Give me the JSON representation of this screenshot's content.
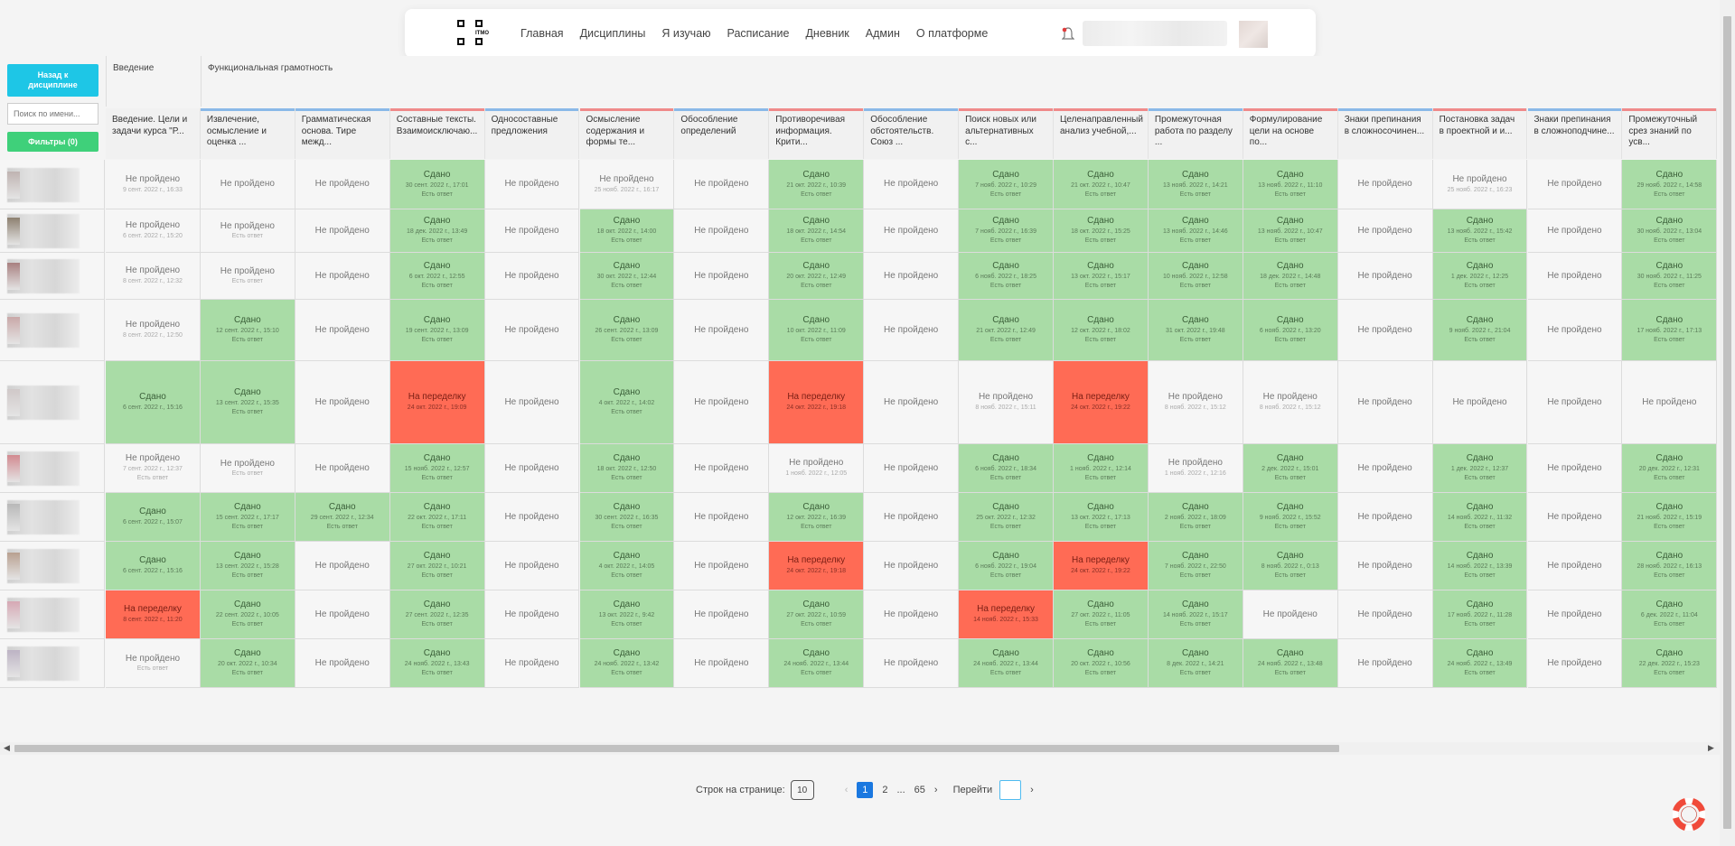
{
  "nav": {
    "logo_text": "ITMO",
    "links": [
      "Главная",
      "Дисциплины",
      "Я изучаю",
      "Расписание",
      "Дневник",
      "Админ",
      "О платформе"
    ]
  },
  "sidebar": {
    "back_label": "Назад к дисциплине",
    "search_placeholder": "Поиск по имени...",
    "filters_label": "Фильтры (0)"
  },
  "groups": [
    "Введение",
    "Функциональная грамотность"
  ],
  "columns": [
    {
      "title": "Введение. Цели и задачи курса \"Р...",
      "bar": "#f1f1f1"
    },
    {
      "title": "Извлечение, осмысление и оценка ...",
      "bar": "#8ab9e8"
    },
    {
      "title": "Грамматическая основа. Тире межд...",
      "bar": "#8ab9e8"
    },
    {
      "title": "Составные тексты. Взаимоисключаю...",
      "bar": "#ef8a8a"
    },
    {
      "title": "Односоставные предложения",
      "bar": "#8ab9e8"
    },
    {
      "title": "Осмысление содержания и формы те...",
      "bar": "#ef8a8a"
    },
    {
      "title": "Обособление определений",
      "bar": "#8ab9e8"
    },
    {
      "title": "Противоречивая информация. Крити...",
      "bar": "#ef8a8a"
    },
    {
      "title": "Обособление обстоятельств. Союз ...",
      "bar": "#8ab9e8"
    },
    {
      "title": "Поиск новых или альтернативных с...",
      "bar": "#ef8a8a"
    },
    {
      "title": "Целенаправленный анализ учебной,...",
      "bar": "#ef8a8a"
    },
    {
      "title": "Промежуточная работа по разделу ...",
      "bar": "#8ab9e8"
    },
    {
      "title": "Формулирование цели на основе по...",
      "bar": "#ef8a8a"
    },
    {
      "title": "Знаки препинания в сложносочинен...",
      "bar": "#8ab9e8"
    },
    {
      "title": "Постановка задач в проектной и и...",
      "bar": "#ef8a8a"
    },
    {
      "title": "Знаки препинания в сложноподчине...",
      "bar": "#8ab9e8"
    },
    {
      "title": "Промежуточный срез знаний по усв...",
      "bar": "#ef8a8a"
    }
  ],
  "status_labels": {
    "done": "Сдано",
    "not": "Не пройдено",
    "redo": "На переделку",
    "answer": "Есть ответ"
  },
  "rows": [
    [
      [
        "n",
        "9 сент. 2022 г., 16:33",
        0
      ],
      [
        "n",
        "",
        0
      ],
      [
        "n",
        "",
        0
      ],
      [
        "g",
        "30 сент. 2022 г., 17:01",
        1
      ],
      [
        "n",
        "",
        0
      ],
      [
        "n",
        "25 нояб. 2022 г., 16:17",
        0
      ],
      [
        "n",
        "",
        0
      ],
      [
        "g",
        "21 окт. 2022 г., 10:39",
        1
      ],
      [
        "n",
        "",
        0
      ],
      [
        "g",
        "7 нояб. 2022 г., 10:29",
        1
      ],
      [
        "g",
        "21 окт. 2022 г., 10:47",
        1
      ],
      [
        "g",
        "13 нояб. 2022 г., 14:21",
        1
      ],
      [
        "g",
        "13 нояб. 2022 г., 11:10",
        1
      ],
      [
        "n",
        "",
        0
      ],
      [
        "n",
        "25 нояб. 2022 г., 16:23",
        0
      ],
      [
        "n",
        "",
        0
      ],
      [
        "g",
        "29 нояб. 2022 г., 14:58",
        1
      ]
    ],
    [
      [
        "n",
        "6 сент. 2022 г., 15:20",
        0
      ],
      [
        "n",
        "",
        1
      ],
      [
        "n",
        "",
        0
      ],
      [
        "g",
        "18 дек. 2022 г., 13:49",
        1
      ],
      [
        "n",
        "",
        0
      ],
      [
        "g",
        "18 окт. 2022 г., 14:00",
        1
      ],
      [
        "n",
        "",
        0
      ],
      [
        "g",
        "18 окт. 2022 г., 14:54",
        1
      ],
      [
        "n",
        "",
        0
      ],
      [
        "g",
        "7 нояб. 2022 г., 16:39",
        1
      ],
      [
        "g",
        "18 окт. 2022 г., 15:25",
        1
      ],
      [
        "g",
        "13 нояб. 2022 г., 14:46",
        1
      ],
      [
        "g",
        "13 нояб. 2022 г., 10:47",
        1
      ],
      [
        "n",
        "",
        0
      ],
      [
        "g",
        "13 нояб. 2022 г., 15:42",
        1
      ],
      [
        "n",
        "",
        0
      ],
      [
        "g",
        "30 нояб. 2022 г., 13:04",
        1
      ]
    ],
    [
      [
        "n",
        "8 сент. 2022 г., 12:32",
        0
      ],
      [
        "n",
        "",
        1
      ],
      [
        "n",
        "",
        0
      ],
      [
        "g",
        "6 окт. 2022 г., 12:55",
        1
      ],
      [
        "n",
        "",
        0
      ],
      [
        "g",
        "30 окт. 2022 г., 12:44",
        1
      ],
      [
        "n",
        "",
        0
      ],
      [
        "g",
        "20 окт. 2022 г., 12:49",
        1
      ],
      [
        "n",
        "",
        0
      ],
      [
        "g",
        "6 нояб. 2022 г., 18:25",
        1
      ],
      [
        "g",
        "13 окт. 2022 г., 15:17",
        1
      ],
      [
        "g",
        "10 нояб. 2022 г., 12:58",
        1
      ],
      [
        "g",
        "18 дек. 2022 г., 14:48",
        1
      ],
      [
        "n",
        "",
        0
      ],
      [
        "g",
        "1 дек. 2022 г., 12:25",
        1
      ],
      [
        "n",
        "",
        0
      ],
      [
        "g",
        "30 нояб. 2022 г., 11:25",
        1
      ]
    ],
    [
      [
        "n",
        "8 сент. 2022 г., 12:50",
        0
      ],
      [
        "g",
        "12 сент. 2022 г., 15:10",
        1
      ],
      [
        "n",
        "",
        0
      ],
      [
        "g",
        "19 сент. 2022 г., 13:09",
        1
      ],
      [
        "n",
        "",
        0
      ],
      [
        "g",
        "26 сент. 2022 г., 13:09",
        1
      ],
      [
        "n",
        "",
        0
      ],
      [
        "g",
        "10 окт. 2022 г., 11:09",
        1
      ],
      [
        "n",
        "",
        0
      ],
      [
        "g",
        "21 окт. 2022 г., 12:49",
        1
      ],
      [
        "g",
        "12 окт. 2022 г., 18:02",
        1
      ],
      [
        "g",
        "31 окт. 2022 г., 19:48",
        1
      ],
      [
        "g",
        "6 нояб. 2022 г., 13:20",
        1
      ],
      [
        "n",
        "",
        0
      ],
      [
        "g",
        "9 нояб. 2022 г., 21:04",
        1
      ],
      [
        "n",
        "",
        0
      ],
      [
        "g",
        "17 нояб. 2022 г., 17:13",
        1
      ]
    ],
    [
      [
        "g",
        "6 сент. 2022 г., 15:16",
        0
      ],
      [
        "g",
        "13 сент. 2022 г., 15:35",
        1
      ],
      [
        "n",
        "",
        0
      ],
      [
        "r",
        "24 окт. 2022 г., 19:09",
        0
      ],
      [
        "n",
        "",
        0
      ],
      [
        "g",
        "4 окт. 2022 г., 14:02",
        1
      ],
      [
        "n",
        "",
        0
      ],
      [
        "r",
        "24 окт. 2022 г., 19:18",
        0
      ],
      [
        "n",
        "",
        0
      ],
      [
        "n",
        "8 нояб. 2022 г., 15:11",
        0
      ],
      [
        "r",
        "24 окт. 2022 г., 19:22",
        0
      ],
      [
        "n",
        "8 нояб. 2022 г., 15:12",
        0
      ],
      [
        "n",
        "8 нояб. 2022 г., 15:12",
        0
      ],
      [
        "n",
        "",
        0
      ],
      [
        "n",
        "",
        0
      ],
      [
        "n",
        "",
        0
      ],
      [
        "n",
        "",
        0
      ]
    ],
    [
      [
        "n",
        "7 сент. 2022 г., 12:37",
        1
      ],
      [
        "n",
        "",
        1
      ],
      [
        "n",
        "",
        0
      ],
      [
        "g",
        "15 нояб. 2022 г., 12:57",
        1
      ],
      [
        "n",
        "",
        0
      ],
      [
        "g",
        "18 окт. 2022 г., 12:50",
        1
      ],
      [
        "n",
        "",
        0
      ],
      [
        "n",
        "1 нояб. 2022 г., 12:05",
        0
      ],
      [
        "n",
        "",
        0
      ],
      [
        "g",
        "6 нояб. 2022 г., 18:34",
        1
      ],
      [
        "g",
        "1 нояб. 2022 г., 12:14",
        1
      ],
      [
        "n",
        "1 нояб. 2022 г., 12:16",
        0
      ],
      [
        "g",
        "2 дек. 2022 г., 15:01",
        1
      ],
      [
        "n",
        "",
        0
      ],
      [
        "g",
        "1 дек. 2022 г., 12:37",
        1
      ],
      [
        "n",
        "",
        0
      ],
      [
        "g",
        "20 дек. 2022 г., 12:31",
        1
      ]
    ],
    [
      [
        "g",
        "6 сент. 2022 г., 15:07",
        0
      ],
      [
        "g",
        "15 сент. 2022 г., 17:17",
        1
      ],
      [
        "g",
        "29 сент. 2022 г., 12:34",
        1
      ],
      [
        "g",
        "22 окт. 2022 г., 17:11",
        1
      ],
      [
        "n",
        "",
        0
      ],
      [
        "g",
        "30 сент. 2022 г., 16:35",
        1
      ],
      [
        "n",
        "",
        0
      ],
      [
        "g",
        "12 окт. 2022 г., 16:39",
        1
      ],
      [
        "n",
        "",
        0
      ],
      [
        "g",
        "25 окт. 2022 г., 12:32",
        1
      ],
      [
        "g",
        "13 окт. 2022 г., 17:13",
        1
      ],
      [
        "g",
        "2 нояб. 2022 г., 18:09",
        1
      ],
      [
        "g",
        "9 нояб. 2022 г., 15:52",
        1
      ],
      [
        "n",
        "",
        0
      ],
      [
        "g",
        "14 нояб. 2022 г., 11:32",
        1
      ],
      [
        "n",
        "",
        0
      ],
      [
        "g",
        "21 нояб. 2022 г., 15:19",
        1
      ]
    ],
    [
      [
        "g",
        "6 сент. 2022 г., 15:16",
        0
      ],
      [
        "g",
        "13 сент. 2022 г., 15:28",
        1
      ],
      [
        "n",
        "",
        0
      ],
      [
        "g",
        "27 окт. 2022 г., 10:21",
        1
      ],
      [
        "n",
        "",
        0
      ],
      [
        "g",
        "4 окт. 2022 г., 14:05",
        1
      ],
      [
        "n",
        "",
        0
      ],
      [
        "r",
        "24 окт. 2022 г., 19:18",
        0
      ],
      [
        "n",
        "",
        0
      ],
      [
        "g",
        "6 нояб. 2022 г., 19:04",
        1
      ],
      [
        "r",
        "24 окт. 2022 г., 19:22",
        0
      ],
      [
        "g",
        "7 нояб. 2022 г., 22:50",
        1
      ],
      [
        "g",
        "8 нояб. 2022 г., 0:13",
        1
      ],
      [
        "n",
        "",
        0
      ],
      [
        "g",
        "14 нояб. 2022 г., 13:39",
        1
      ],
      [
        "n",
        "",
        0
      ],
      [
        "g",
        "28 нояб. 2022 г., 16:13",
        1
      ]
    ],
    [
      [
        "r",
        "8 сент. 2022 г., 11:20",
        0
      ],
      [
        "g",
        "22 сент. 2022 г., 10:05",
        1
      ],
      [
        "n",
        "",
        0
      ],
      [
        "g",
        "27 сент. 2022 г., 12:35",
        1
      ],
      [
        "n",
        "",
        0
      ],
      [
        "g",
        "13 окт. 2022 г., 9:42",
        1
      ],
      [
        "n",
        "",
        0
      ],
      [
        "g",
        "27 окт. 2022 г., 10:59",
        1
      ],
      [
        "n",
        "",
        0
      ],
      [
        "r",
        "14 нояб. 2022 г., 15:33",
        0
      ],
      [
        "g",
        "27 окт. 2022 г., 11:05",
        1
      ],
      [
        "g",
        "14 нояб. 2022 г., 15:17",
        1
      ],
      [
        "n",
        "",
        0
      ],
      [
        "n",
        "",
        0
      ],
      [
        "g",
        "17 нояб. 2022 г., 11:28",
        1
      ],
      [
        "n",
        "",
        0
      ],
      [
        "g",
        "6 дек. 2022 г., 11:04",
        1
      ]
    ],
    [
      [
        "n",
        "",
        1
      ],
      [
        "g",
        "20 окт. 2022 г., 10:34",
        1
      ],
      [
        "n",
        "",
        0
      ],
      [
        "g",
        "24 нояб. 2022 г., 13:43",
        1
      ],
      [
        "n",
        "",
        0
      ],
      [
        "g",
        "24 нояб. 2022 г., 13:42",
        1
      ],
      [
        "n",
        "",
        0
      ],
      [
        "g",
        "24 нояб. 2022 г., 13:44",
        1
      ],
      [
        "n",
        "",
        0
      ],
      [
        "g",
        "24 нояб. 2022 г., 13:44",
        1
      ],
      [
        "g",
        "20 окт. 2022 г., 10:56",
        1
      ],
      [
        "g",
        "8 дек. 2022 г., 14:21",
        1
      ],
      [
        "g",
        "24 нояб. 2022 г., 13:48",
        1
      ],
      [
        "n",
        "",
        0
      ],
      [
        "g",
        "24 нояб. 2022 г., 13:49",
        1
      ],
      [
        "n",
        "",
        0
      ],
      [
        "g",
        "22 дек. 2022 г., 15:23",
        1
      ]
    ]
  ],
  "pager": {
    "rows_label": "Строк на странице:",
    "rows_value": "10",
    "pages": [
      "1",
      "2",
      "...",
      "65"
    ],
    "goto_label": "Перейти"
  }
}
